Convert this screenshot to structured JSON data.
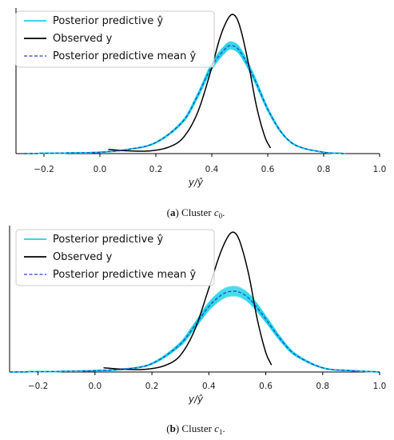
{
  "figure": {
    "panels": [
      {
        "caption": {
          "letter": "a",
          "text": " Cluster ",
          "var": "c",
          "sub": "0",
          "end": "."
        },
        "legend": [
          {
            "label": "Posterior predictive ŷ",
            "color": "#19d3e6",
            "style": "solid"
          },
          {
            "label": "Observed y",
            "color": "#000000",
            "style": "solid"
          },
          {
            "label": "Posterior predictive mean ŷ",
            "color": "#2a3fc8",
            "style": "dashed"
          }
        ]
      },
      {
        "caption": {
          "letter": "b",
          "text": " Cluster ",
          "var": "c",
          "sub": "1",
          "end": "."
        },
        "legend": [
          {
            "label": "Posterior predictive ŷ",
            "color": "#19d3e6",
            "style": "solid"
          },
          {
            "label": "Observed y",
            "color": "#000000",
            "style": "solid"
          },
          {
            "label": "Posterior predictive mean ŷ",
            "color": "#2a3fc8",
            "style": "dashed"
          }
        ]
      }
    ]
  },
  "chart_data": [
    {
      "type": "line",
      "xlabel": "y/ŷ",
      "ylabel": "",
      "xlim": [
        -0.3,
        1.0
      ],
      "xticks": [
        -0.2,
        0.0,
        0.2,
        0.4,
        0.6,
        0.8,
        1.0
      ],
      "xticklabels": [
        "−0.2",
        "0.0",
        "0.2",
        "0.4",
        "0.6",
        "0.8",
        "1.0"
      ],
      "legend_position": "top-left",
      "series": [
        {
          "name": "Observed y",
          "x": [
            0.03,
            0.1,
            0.18,
            0.25,
            0.3,
            0.35,
            0.4,
            0.43,
            0.46,
            0.48,
            0.5,
            0.53,
            0.56,
            0.59,
            0.61
          ],
          "y": [
            0.03,
            0.02,
            0.02,
            0.05,
            0.12,
            0.3,
            0.62,
            0.84,
            0.98,
            1.0,
            0.92,
            0.66,
            0.34,
            0.12,
            0.04
          ]
        },
        {
          "name": "Posterior predictive mean ŷ",
          "x": [
            -0.27,
            -0.1,
            0.0,
            0.1,
            0.2,
            0.3,
            0.35,
            0.4,
            0.45,
            0.47,
            0.5,
            0.55,
            0.6,
            0.65,
            0.7,
            0.8,
            0.88
          ],
          "y": [
            0.0,
            0.005,
            0.01,
            0.03,
            0.08,
            0.24,
            0.42,
            0.63,
            0.76,
            0.78,
            0.74,
            0.55,
            0.32,
            0.15,
            0.06,
            0.01,
            0.0
          ]
        }
      ],
      "band": {
        "name": "Posterior predictive ŷ",
        "width": 0.035
      }
    },
    {
      "type": "line",
      "xlabel": "y/ŷ",
      "ylabel": "",
      "xlim": [
        -0.3,
        1.0
      ],
      "xticks": [
        -0.2,
        0.0,
        0.2,
        0.4,
        0.6,
        0.8,
        1.0
      ],
      "xticklabels": [
        "−0.2",
        "0.0",
        "0.2",
        "0.4",
        "0.6",
        "0.8",
        "1.0"
      ],
      "legend_position": "top-left",
      "series": [
        {
          "name": "Observed y",
          "x": [
            0.03,
            0.1,
            0.18,
            0.25,
            0.3,
            0.35,
            0.4,
            0.44,
            0.47,
            0.49,
            0.51,
            0.54,
            0.57,
            0.6,
            0.62
          ],
          "y": [
            0.03,
            0.02,
            0.02,
            0.05,
            0.12,
            0.3,
            0.6,
            0.85,
            0.98,
            1.0,
            0.93,
            0.7,
            0.38,
            0.14,
            0.05
          ]
        },
        {
          "name": "Posterior predictive mean ŷ",
          "x": [
            -0.3,
            -0.1,
            0.0,
            0.1,
            0.2,
            0.3,
            0.35,
            0.4,
            0.45,
            0.49,
            0.52,
            0.55,
            0.6,
            0.65,
            0.7,
            0.8,
            0.9,
            1.0
          ],
          "y": [
            0.0,
            0.005,
            0.01,
            0.02,
            0.06,
            0.2,
            0.33,
            0.47,
            0.56,
            0.58,
            0.56,
            0.51,
            0.38,
            0.24,
            0.13,
            0.03,
            0.01,
            0.0
          ]
        }
      ],
      "band": {
        "name": "Posterior predictive ŷ",
        "width": 0.06
      }
    }
  ]
}
